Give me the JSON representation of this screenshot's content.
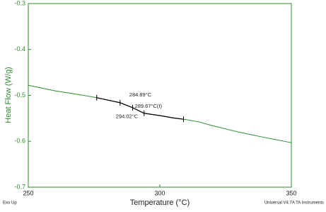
{
  "chart_data": {
    "type": "line",
    "x_label": "Temperature (°C)",
    "y_label": "Heat Flow (W/g)",
    "footer_left": "Exo Up",
    "footer_right": "Universal V4.7A TA Instruments",
    "xlim": [
      250,
      350
    ],
    "xticks": [
      250,
      300,
      350
    ],
    "ylim": [
      -0.7,
      -0.3
    ],
    "yticks": [
      -0.7,
      -0.6,
      -0.5,
      -0.4,
      -0.3
    ],
    "axis_color": "#2e8b2e",
    "series": [
      {
        "color": "#2e8b2e",
        "x": [
          250,
          260,
          270,
          276,
          280,
          284.9,
          289.7,
          294,
          300,
          305,
          309,
          315,
          320,
          330,
          340,
          350
        ],
        "values": [
          -0.478,
          -0.49,
          -0.499,
          -0.505,
          -0.51,
          -0.516,
          -0.527,
          -0.539,
          -0.544,
          -0.549,
          -0.552,
          -0.558,
          -0.566,
          -0.58,
          -0.592,
          -0.603
        ]
      },
      {
        "color": "#000000",
        "x": [
          276,
          280,
          284.9,
          289.7,
          294,
          300,
          305,
          309
        ],
        "values": [
          -0.505,
          -0.51,
          -0.516,
          -0.527,
          -0.539,
          -0.544,
          -0.549,
          -0.552
        ]
      }
    ],
    "markers": [
      {
        "x": 276,
        "y": -0.505
      },
      {
        "x": 284.89,
        "y": -0.516
      },
      {
        "x": 289.67,
        "y": -0.527
      },
      {
        "x": 294.02,
        "y": -0.539
      },
      {
        "x": 309,
        "y": -0.552
      }
    ],
    "annotations": [
      {
        "text": "284.89°C",
        "x": 284.89,
        "y": -0.516
      },
      {
        "text": "289.67°C(I)",
        "x": 289.67,
        "y": -0.527
      },
      {
        "text": "294.02°C",
        "x": 294.02,
        "y": -0.539
      }
    ]
  }
}
